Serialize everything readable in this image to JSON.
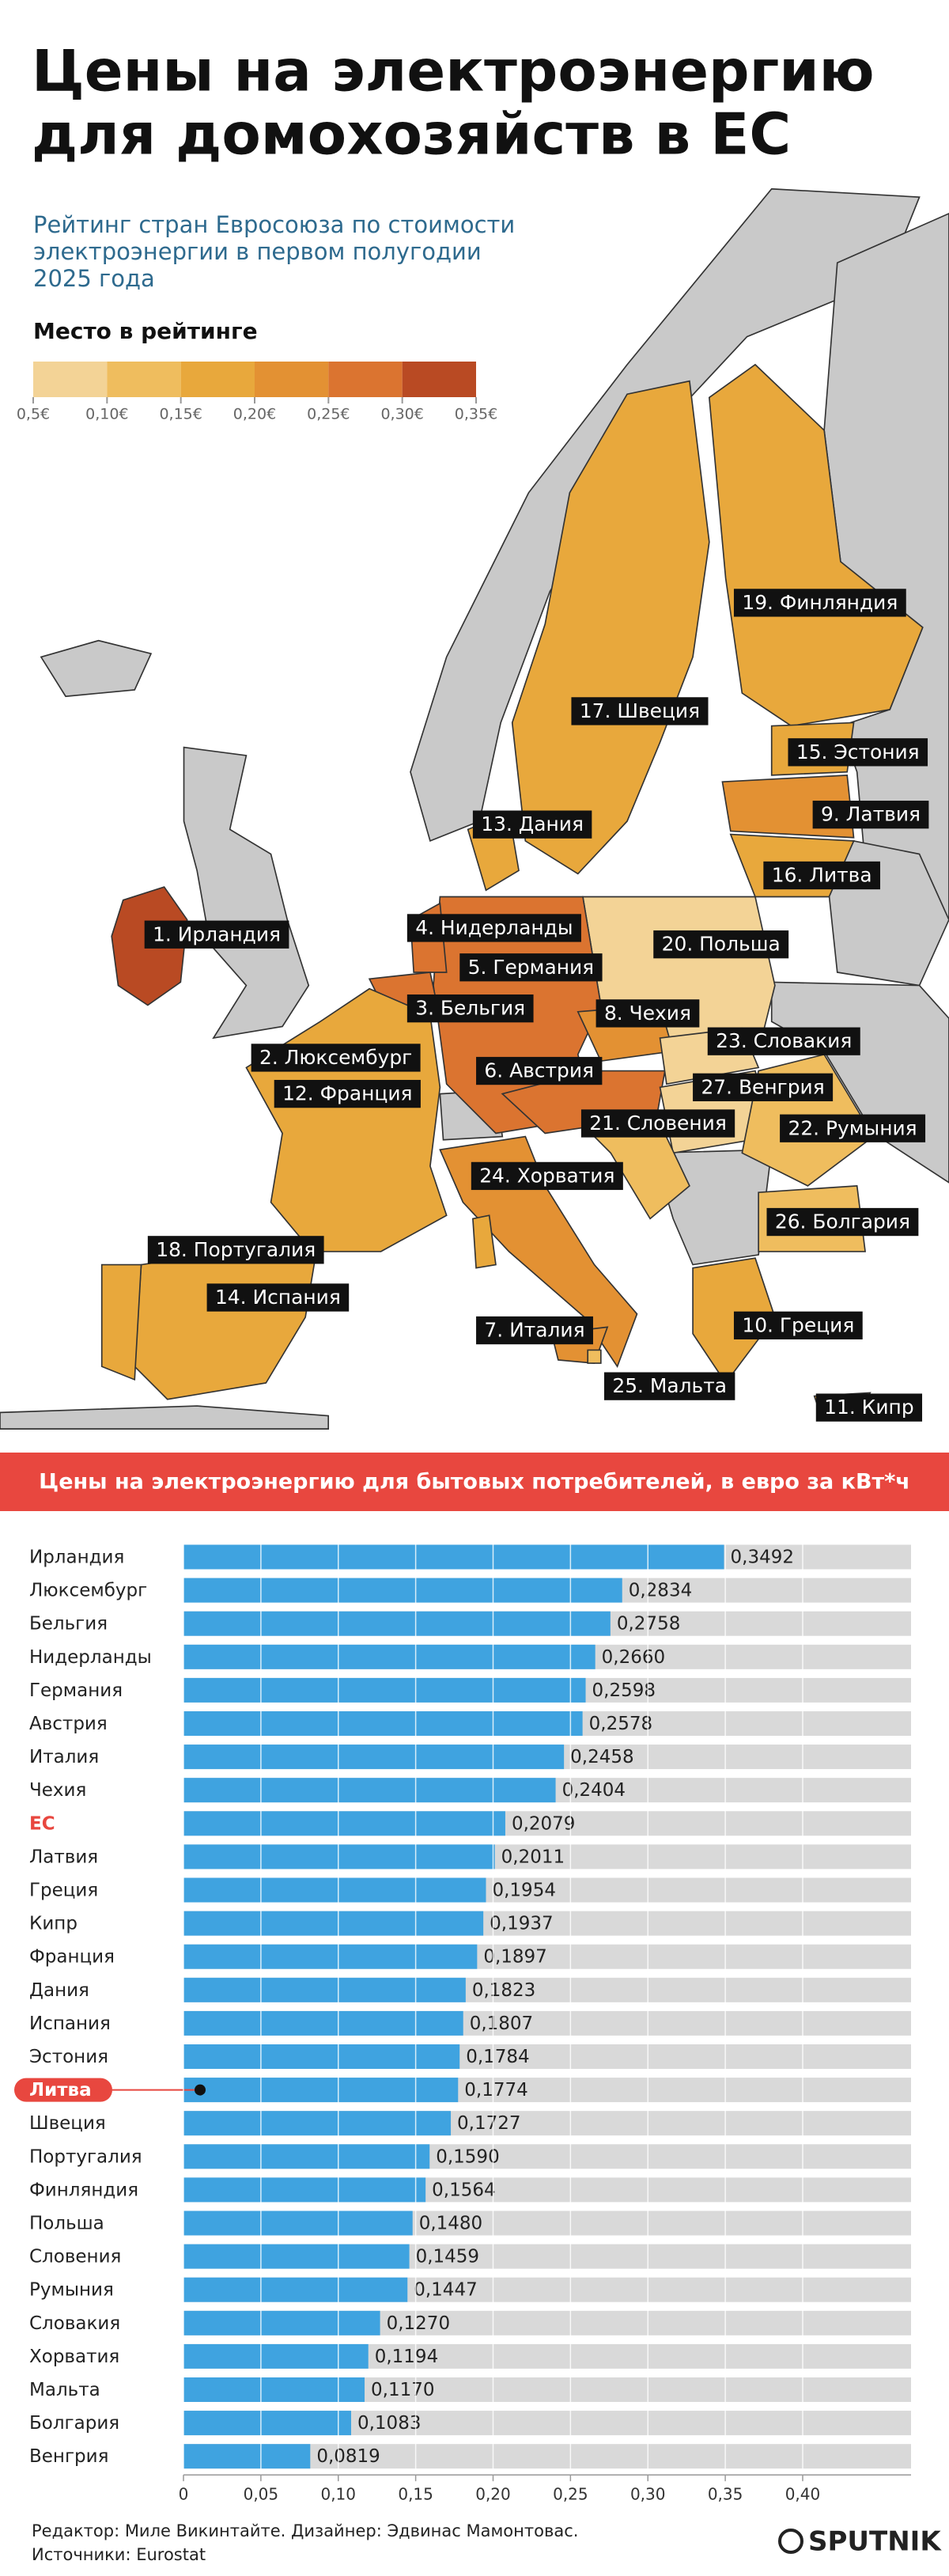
{
  "header": {
    "title": [
      "Цены на электроэнергию",
      "для домохозяйств в ЕС"
    ],
    "subtitle": [
      "Рейтинг стран Евросоюза по стоимости",
      "электроэнергии в первом полугодии",
      "2025 года"
    ]
  },
  "legend": {
    "title": "Место в рейтинге",
    "colors": [
      "#f3d396",
      "#efbd5e",
      "#e8a83c",
      "#e39133",
      "#db7430",
      "#b94a23"
    ],
    "labels": [
      "0,5€",
      "0,10€",
      "0,15€",
      "0,20€",
      "0,25€",
      "0,30€",
      "0,35€"
    ]
  },
  "map_labels": [
    "1. Ирландия",
    "2. Люксембург",
    "3. Бельгия",
    "4. Нидерланды",
    "5. Германия",
    "6. Австрия",
    "7. Италия",
    "8. Чехия",
    "9. Латвия",
    "10. Греция",
    "11. Кипр",
    "12. Франция",
    "13. Дания",
    "14. Испания",
    "15. Эстония",
    "16. Литва",
    "17. Швеция",
    "18. Португалия",
    "19. Финляндия",
    "20. Польша",
    "21. Словения",
    "22. Румыния",
    "23. Словакия",
    "24. Хорватия",
    "25. Мальта",
    "26. Болгария",
    "27. Венгрия"
  ],
  "chart_data": {
    "type": "bar",
    "orientation": "horizontal",
    "title": "Цены на электроэнергию для бытовых потребителей, в евро за кВт*ч",
    "categories": [
      "Ирландия",
      "Люксембург",
      "Бельгия",
      "Нидерланды",
      "Германия",
      "Австрия",
      "Италия",
      "Чехия",
      "ЕС",
      "Латвия",
      "Греция",
      "Кипр",
      "Франция",
      "Дания",
      "Испания",
      "Эстония",
      "Литва",
      "Швеция",
      "Португалия",
      "Финляндия",
      "Польша",
      "Словения",
      "Румыния",
      "Словакия",
      "Хорватия",
      "Мальта",
      "Болгария",
      "Венгрия"
    ],
    "values": [
      0.3492,
      0.2834,
      0.2758,
      0.266,
      0.2598,
      0.2578,
      0.2458,
      0.2404,
      0.2079,
      0.2011,
      0.1954,
      0.1937,
      0.1897,
      0.1823,
      0.1807,
      0.1784,
      0.1774,
      0.1727,
      0.159,
      0.1564,
      0.148,
      0.1459,
      0.1447,
      0.127,
      0.1194,
      0.117,
      0.1083,
      0.0819
    ],
    "value_labels": [
      "0,3492",
      "0,2834",
      "0,2758",
      "0,2660",
      "0,2598",
      "0,2578",
      "0,2458",
      "0,2404",
      "0,2079",
      "0,2011",
      "0,1954",
      "0,1937",
      "0,1897",
      "0,1823",
      "0,1807",
      "0,1784",
      "0,1774",
      "0,1727",
      "0,1590",
      "0,1564",
      "0,1480",
      "0,1459",
      "0,1447",
      "0,1270",
      "0,1194",
      "0,1170",
      "0,1083",
      "0,0819"
    ],
    "label_colors": [
      "#222",
      "#222",
      "#222",
      "#222",
      "#222",
      "#222",
      "#222",
      "#222",
      "#e8473f",
      "#222",
      "#222",
      "#222",
      "#222",
      "#222",
      "#222",
      "#222",
      "#ffffff",
      "#222",
      "#222",
      "#222",
      "#222",
      "#222",
      "#222",
      "#222",
      "#222",
      "#222",
      "#222",
      "#222"
    ],
    "label_backgrounds": [
      null,
      null,
      null,
      null,
      null,
      null,
      null,
      null,
      null,
      null,
      null,
      null,
      null,
      null,
      null,
      null,
      "#e8473f",
      null,
      null,
      null,
      null,
      null,
      null,
      null,
      null,
      null,
      null,
      null
    ],
    "color": "#3fa3e0",
    "track_color": "#d9d9d9",
    "xlim": [
      0,
      0.47
    ],
    "xticks": [
      0,
      {
        "value": 0.05,
        "label": "0,05"
      },
      {
        "value": 0.1,
        "label": "0,10"
      },
      {
        "value": 0.15,
        "label": "0,15"
      },
      {
        "value": 0.2,
        "label": "0,20"
      },
      {
        "value": 0.25,
        "label": "0,25"
      },
      {
        "value": 0.3,
        "label": "0,30"
      },
      {
        "value": 0.35,
        "label": "0,35"
      },
      {
        "value": 0.4,
        "label": "0,40"
      }
    ],
    "grid": true
  },
  "footer": {
    "credits": "Редактор: Миле Викинтайте.  Дизайнер: Эдвинас Мамонтовас.",
    "sources": "Источники: Eurostat",
    "logo": "SPUTNIK"
  }
}
